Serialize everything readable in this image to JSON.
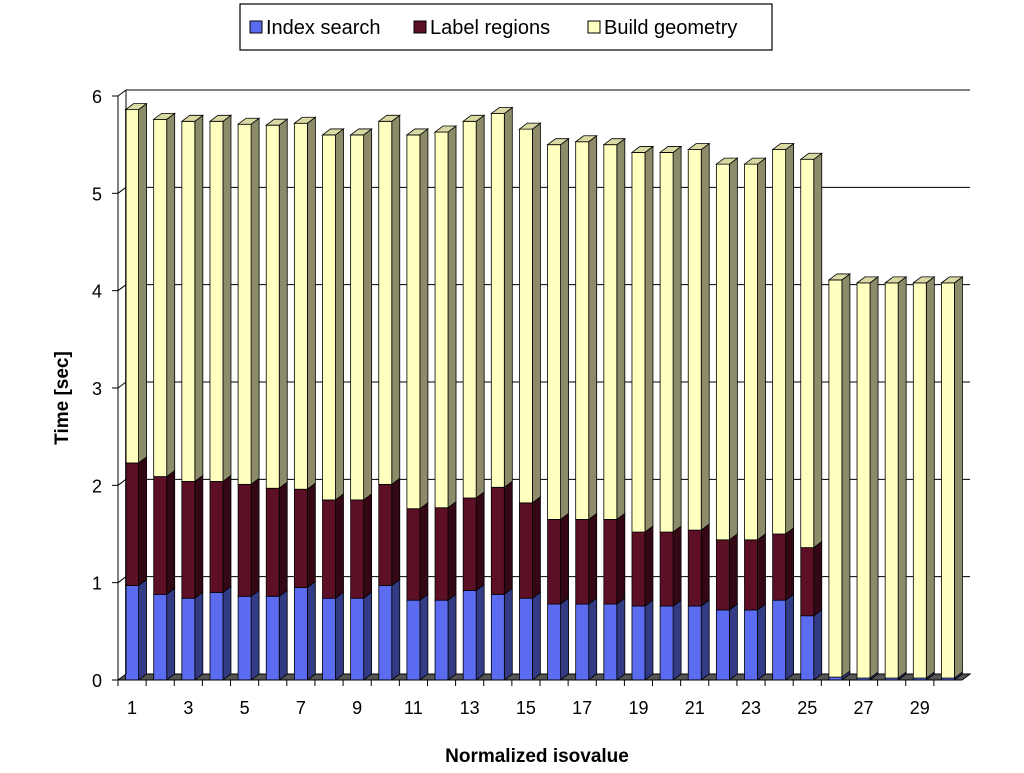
{
  "chart_data": {
    "type": "bar",
    "stacked": true,
    "title": "",
    "xlabel": "Normalized isovalue",
    "ylabel": "Time [sec]",
    "ylim": [
      0,
      6
    ],
    "yticks": [
      0,
      1,
      2,
      3,
      4,
      5,
      6
    ],
    "grid": true,
    "legend": "top-center",
    "categories": [
      1,
      2,
      3,
      4,
      5,
      6,
      7,
      8,
      9,
      10,
      11,
      12,
      13,
      14,
      15,
      16,
      17,
      18,
      19,
      20,
      21,
      22,
      23,
      24,
      25,
      26,
      27,
      28,
      29,
      30
    ],
    "xtick_labels": [
      "1",
      "3",
      "5",
      "7",
      "9",
      "11",
      "13",
      "15",
      "17",
      "19",
      "21",
      "23",
      "25",
      "27",
      "29"
    ],
    "series": [
      {
        "name": "Index search",
        "color": "#5b6cf0",
        "values": [
          0.97,
          0.88,
          0.84,
          0.9,
          0.86,
          0.86,
          0.95,
          0.84,
          0.84,
          0.97,
          0.82,
          0.82,
          0.92,
          0.88,
          0.84,
          0.78,
          0.78,
          0.78,
          0.76,
          0.76,
          0.76,
          0.72,
          0.72,
          0.82,
          0.66,
          0.03,
          0.02,
          0.02,
          0.02,
          0.02
        ]
      },
      {
        "name": "Label regions",
        "color": "#5c0f25",
        "values": [
          1.26,
          1.21,
          1.2,
          1.14,
          1.15,
          1.11,
          1.01,
          1.01,
          1.01,
          1.04,
          0.94,
          0.95,
          0.95,
          1.1,
          0.98,
          0.87,
          0.87,
          0.87,
          0.76,
          0.76,
          0.78,
          0.72,
          0.72,
          0.68,
          0.7,
          0.0,
          0.0,
          0.0,
          0.0,
          0.0
        ]
      },
      {
        "name": "Build geometry",
        "color": "#ffffc0",
        "values": [
          3.63,
          3.67,
          3.7,
          3.7,
          3.7,
          3.73,
          3.76,
          3.75,
          3.75,
          3.73,
          3.84,
          3.86,
          3.87,
          3.84,
          3.84,
          3.85,
          3.88,
          3.85,
          3.9,
          3.9,
          3.91,
          3.86,
          3.86,
          3.95,
          3.99,
          4.08,
          4.06,
          4.06,
          4.06,
          4.06
        ]
      }
    ]
  }
}
